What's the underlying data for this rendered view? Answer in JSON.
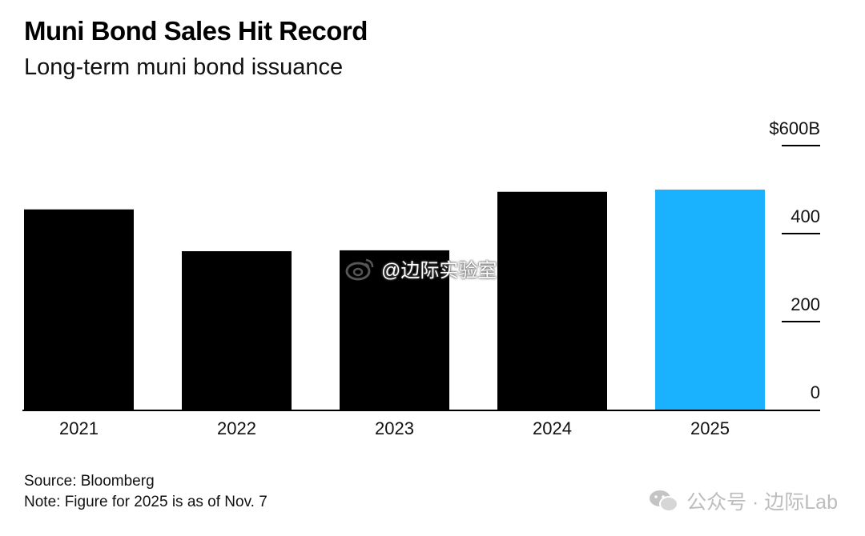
{
  "title": "Muni Bond Sales Hit Record",
  "subtitle": "Long-term muni bond issuance",
  "source": "Source: Bloomberg",
  "note": "Note: Figure for 2025 is as of Nov. 7",
  "watermark_center": "@边际实验室",
  "watermark_bottom": "公众号 · 边际Lab",
  "colors": {
    "bar": "#000000",
    "highlight": "#1ab1ff",
    "axis": "#000000"
  },
  "chart_data": {
    "type": "bar",
    "categories": [
      "2021",
      "2022",
      "2023",
      "2024",
      "2025"
    ],
    "values": [
      455,
      360,
      362,
      495,
      500
    ],
    "highlight_index": 4,
    "title": "Muni Bond Sales Hit Record",
    "subtitle": "Long-term muni bond issuance",
    "xlabel": "",
    "ylabel": "",
    "ylim": [
      0,
      600
    ],
    "yticks": [
      0,
      200,
      400,
      600
    ],
    "ytick_labels": [
      "0",
      "200",
      "400",
      "$600B"
    ],
    "grid": false,
    "legend": "none"
  }
}
